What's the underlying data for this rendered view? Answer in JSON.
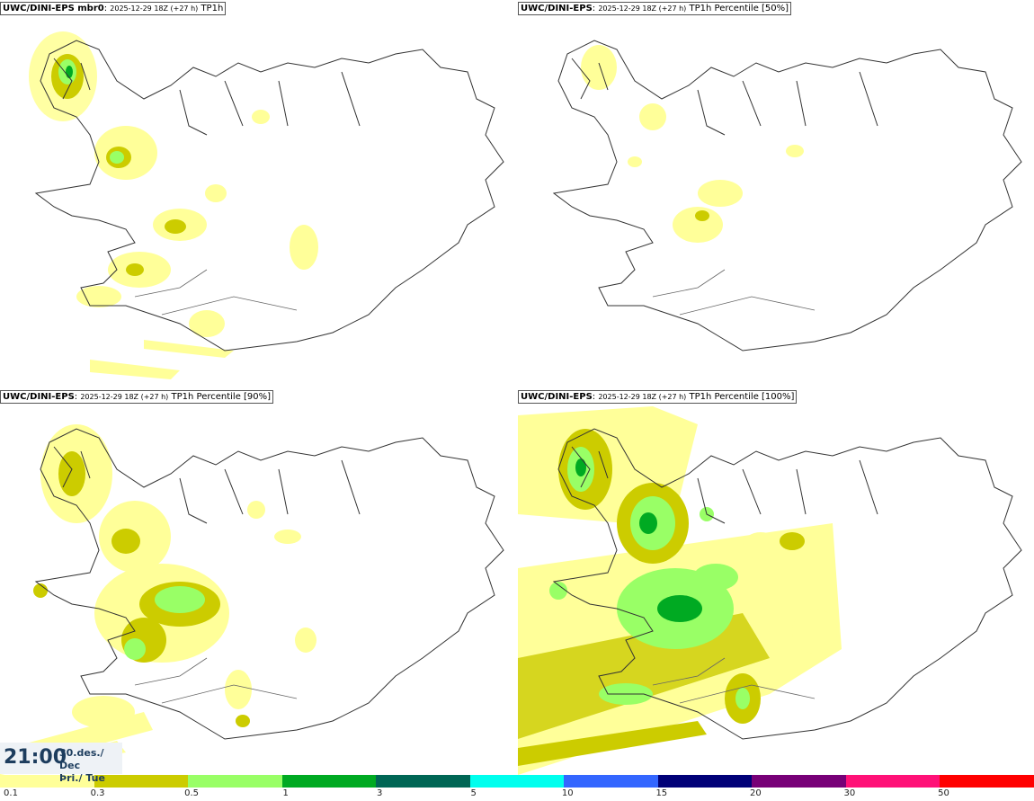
{
  "panels": [
    {
      "model": "UWC/DINI-EPS mbr0",
      "run": "2025-12-29 18Z (+27 h)",
      "field": "TP1h"
    },
    {
      "model": "UWC/DINI-EPS",
      "run": "2025-12-29 18Z (+27 h)",
      "field": "TP1h Percentile [50%]"
    },
    {
      "model": "UWC/DINI-EPS",
      "run": "2025-12-29 18Z (+27 h)",
      "field": "TP1h Percentile [90%]"
    },
    {
      "model": "UWC/DINI-EPS",
      "run": "2025-12-29 18Z (+27 h)",
      "field": "TP1h Percentile [100%]"
    }
  ],
  "clock": {
    "time": "21:00",
    "date_line1": "30.des./ Dec",
    "date_line2": "Þri./ Tue"
  },
  "legend": {
    "ticks": [
      "0.1",
      "0.3",
      "0.5",
      "1",
      "3",
      "5",
      "10",
      "15",
      "20",
      "30",
      "50"
    ],
    "colors": [
      "#ffff99",
      "#cccc00",
      "#99ff66",
      "#00aa22",
      "#006655",
      "#00ffee",
      "#3366ff",
      "#000077",
      "#770077",
      "#ff1177",
      "#ff0000"
    ]
  }
}
